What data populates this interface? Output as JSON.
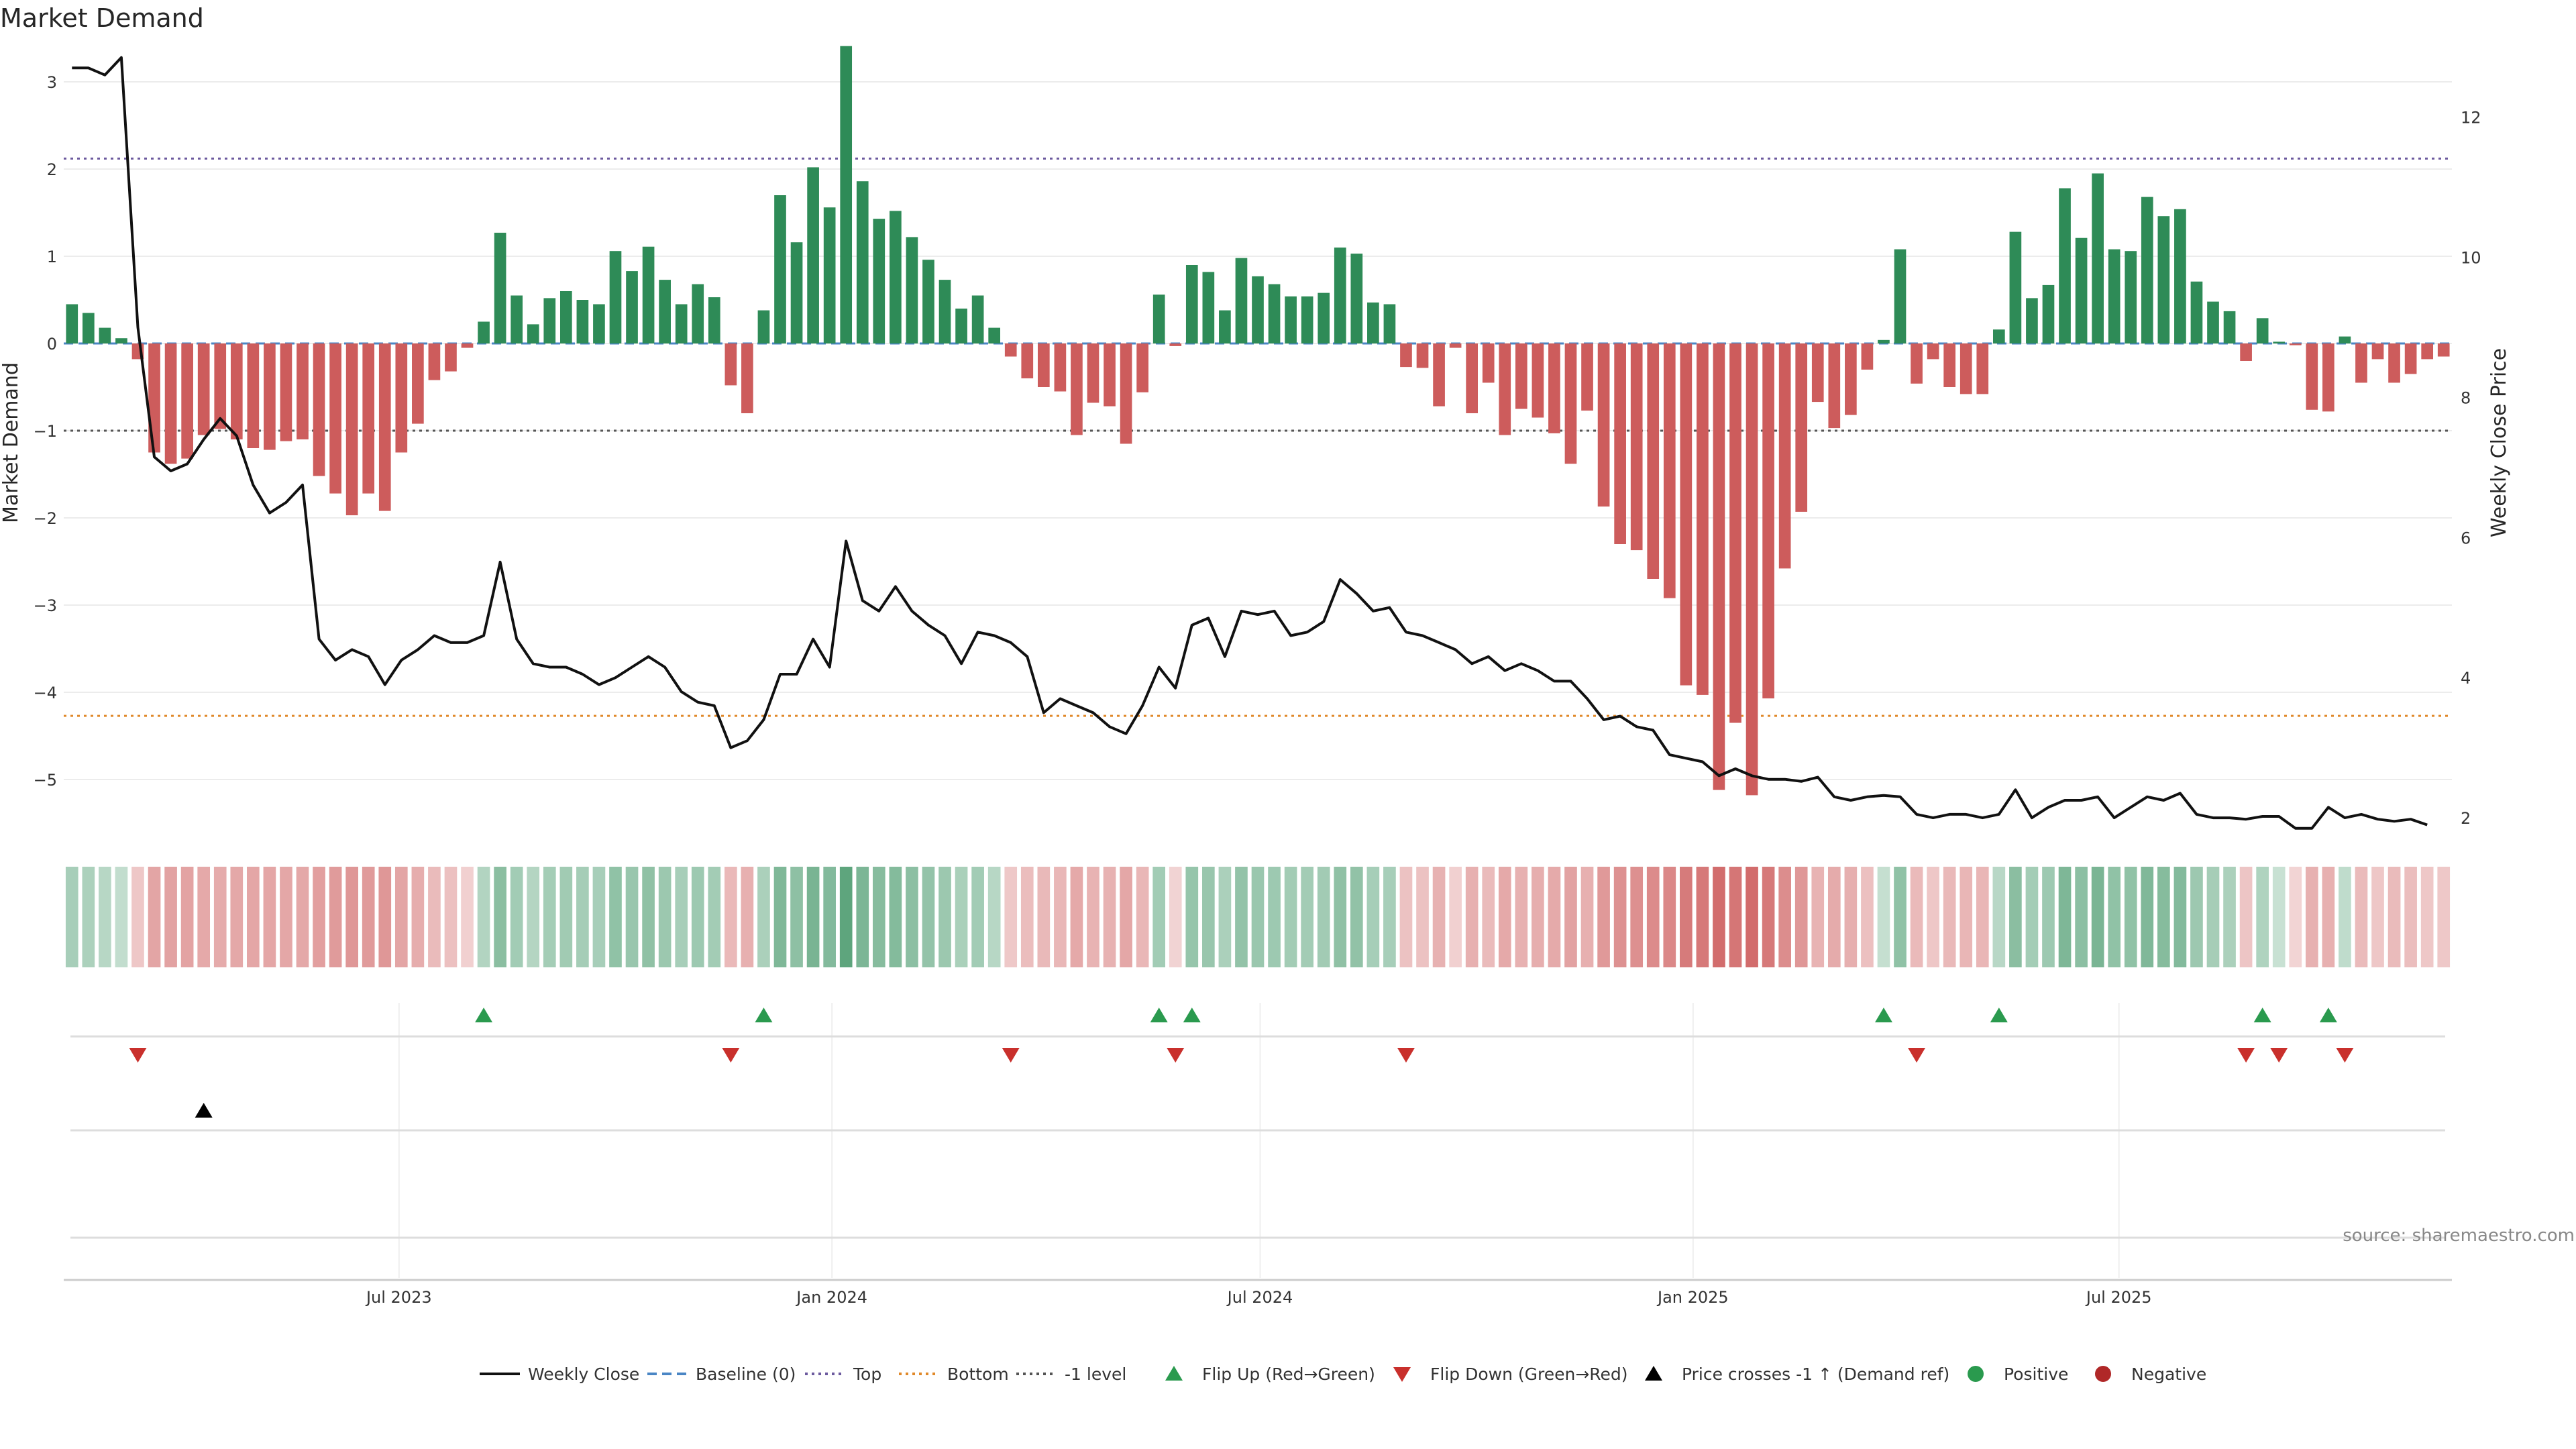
{
  "chart_data": {
    "type": "bar",
    "title": "Market Demand",
    "ylabel": "Market Demand",
    "y2label": "Weekly Close Price",
    "ylim": [
      -5.6,
      3.4
    ],
    "y2lim": [
      1.8,
      13.0
    ],
    "yticks": [
      "3",
      "2",
      "1",
      "0",
      "−1",
      "−2",
      "−3",
      "−4",
      "−5"
    ],
    "y2ticks": [
      "12",
      "10",
      "8",
      "6",
      "4",
      "2"
    ],
    "xticks": [
      "Jul 2023",
      "Jan 2024",
      "Jul 2024",
      "Jan 2025",
      "Jul 2025"
    ],
    "levels": {
      "top": 2.12,
      "minus_one": -1.0,
      "bottom": -4.27
    },
    "bars": {
      "start_date": "2023-02-12",
      "week_step_days": 7,
      "values": [
        0.45,
        0.35,
        0.18,
        0.06,
        -0.18,
        -1.25,
        -1.38,
        -1.32,
        -1.05,
        -0.98,
        -1.1,
        -1.2,
        -1.22,
        -1.12,
        -1.1,
        -1.52,
        -1.72,
        -1.97,
        -1.72,
        -1.92,
        -1.25,
        -0.92,
        -0.42,
        -0.32,
        -0.05,
        0.25,
        1.27,
        0.55,
        0.22,
        0.52,
        0.6,
        0.5,
        0.45,
        1.06,
        0.83,
        1.11,
        0.73,
        0.45,
        0.68,
        0.53,
        -0.48,
        -0.8,
        0.38,
        1.7,
        1.16,
        2.02,
        1.56,
        3.41,
        1.86,
        1.43,
        1.52,
        1.22,
        0.96,
        0.73,
        0.4,
        0.55,
        0.18,
        -0.15,
        -0.4,
        -0.5,
        -0.55,
        -1.05,
        -0.68,
        -0.72,
        -1.15,
        -0.56,
        0.56,
        -0.03,
        0.9,
        0.82,
        0.38,
        0.98,
        0.77,
        0.68,
        0.54,
        0.54,
        0.58,
        1.1,
        1.03,
        0.47,
        0.45,
        -0.27,
        -0.28,
        -0.72,
        -0.05,
        -0.8,
        -0.45,
        -1.05,
        -0.75,
        -0.85,
        -1.03,
        -1.38,
        -0.77,
        -1.87,
        -2.3,
        -2.37,
        -2.7,
        -2.92,
        -3.92,
        -4.03,
        -5.12,
        -4.35,
        -5.18,
        -4.07,
        -2.58,
        -1.93,
        -0.67,
        -0.97,
        -0.82,
        -0.3,
        0.04,
        1.08,
        -0.46,
        -0.18,
        -0.5,
        -0.58,
        -0.58,
        0.16,
        1.28,
        0.52,
        0.67,
        1.78,
        1.21,
        1.95,
        1.08,
        1.06,
        1.68,
        1.46,
        1.54,
        0.71,
        0.48,
        0.37,
        -0.2,
        0.29,
        0.02,
        -0.02,
        -0.76,
        -0.78,
        0.08,
        -0.45,
        -0.18,
        -0.45,
        -0.35,
        -0.18,
        -0.15
      ]
    },
    "price": {
      "name": "Weekly Close",
      "values": [
        12.7,
        12.7,
        12.6,
        12.85,
        9.0,
        7.15,
        6.95,
        7.05,
        7.4,
        7.7,
        7.45,
        6.75,
        6.35,
        6.5,
        6.75,
        4.55,
        4.25,
        4.4,
        4.3,
        3.9,
        4.25,
        4.4,
        4.6,
        4.5,
        4.5,
        4.6,
        5.65,
        4.55,
        4.2,
        4.15,
        4.15,
        4.05,
        3.9,
        4.0,
        4.15,
        4.3,
        4.15,
        3.8,
        3.65,
        3.6,
        3.0,
        3.1,
        3.4,
        4.05,
        4.05,
        4.55,
        4.15,
        5.95,
        5.1,
        4.95,
        5.3,
        4.95,
        4.75,
        4.6,
        4.2,
        4.65,
        4.6,
        4.5,
        4.3,
        3.5,
        3.7,
        3.6,
        3.5,
        3.3,
        3.2,
        3.6,
        4.15,
        3.85,
        4.75,
        4.85,
        4.3,
        4.95,
        4.9,
        4.95,
        4.6,
        4.65,
        4.8,
        5.4,
        5.2,
        4.95,
        5.0,
        4.65,
        4.6,
        4.5,
        4.4,
        4.2,
        4.3,
        4.1,
        4.2,
        4.1,
        3.95,
        3.95,
        3.7,
        3.4,
        3.45,
        3.3,
        3.25,
        2.9,
        2.85,
        2.8,
        2.6,
        2.7,
        2.6,
        2.55,
        2.55,
        2.52,
        2.58,
        2.3,
        2.25,
        2.3,
        2.32,
        2.3,
        2.05,
        2.0,
        2.05,
        2.05,
        2.0,
        2.05,
        2.4,
        2.0,
        2.15,
        2.25,
        2.25,
        2.3,
        2.0,
        2.15,
        2.3,
        2.25,
        2.35,
        2.05,
        2.0,
        2.0,
        1.98,
        2.02,
        2.02,
        1.85,
        1.85,
        2.15,
        2.0,
        2.05,
        1.98,
        1.95,
        1.98,
        1.9
      ]
    },
    "heat_strip": "Demand intensity per week (green positive, red negative)",
    "signals": {
      "flip_up_weeks": [
        25,
        42,
        66,
        68,
        110,
        117,
        133,
        137
      ],
      "flip_down_weeks": [
        4,
        40,
        57,
        67,
        81,
        112,
        132,
        134,
        138
      ],
      "price_cross_weeks": [
        8
      ]
    },
    "legend_position": "bottom-center",
    "legend": [
      {
        "label": "Weekly Close",
        "kind": "line",
        "color": "#111111"
      },
      {
        "label": "Baseline (0)",
        "kind": "dash",
        "color": "#4a86c5"
      },
      {
        "label": "Top",
        "kind": "dot",
        "color": "#6c5a9e"
      },
      {
        "label": "Bottom",
        "kind": "dot",
        "color": "#e0892a"
      },
      {
        "label": "-1 level",
        "kind": "dot",
        "color": "#555555"
      },
      {
        "label": "Flip Up (Red→Green)",
        "kind": "tri-up",
        "color": "#2a9a4e"
      },
      {
        "label": "Flip Down (Green→Red)",
        "kind": "tri-down",
        "color": "#c9302c"
      },
      {
        "label": "Price crosses -1 ↑ (Demand ref)",
        "kind": "tri-up",
        "color": "#000000"
      },
      {
        "label": "Positive",
        "kind": "circle",
        "color": "#2a9a4e"
      },
      {
        "label": "Negative",
        "kind": "circle",
        "color": "#b02828"
      }
    ],
    "colors": {
      "positive": "#2e8b57",
      "negative": "#cd5c5c",
      "price": "#111111"
    },
    "source": "source: sharemaestro.com"
  }
}
